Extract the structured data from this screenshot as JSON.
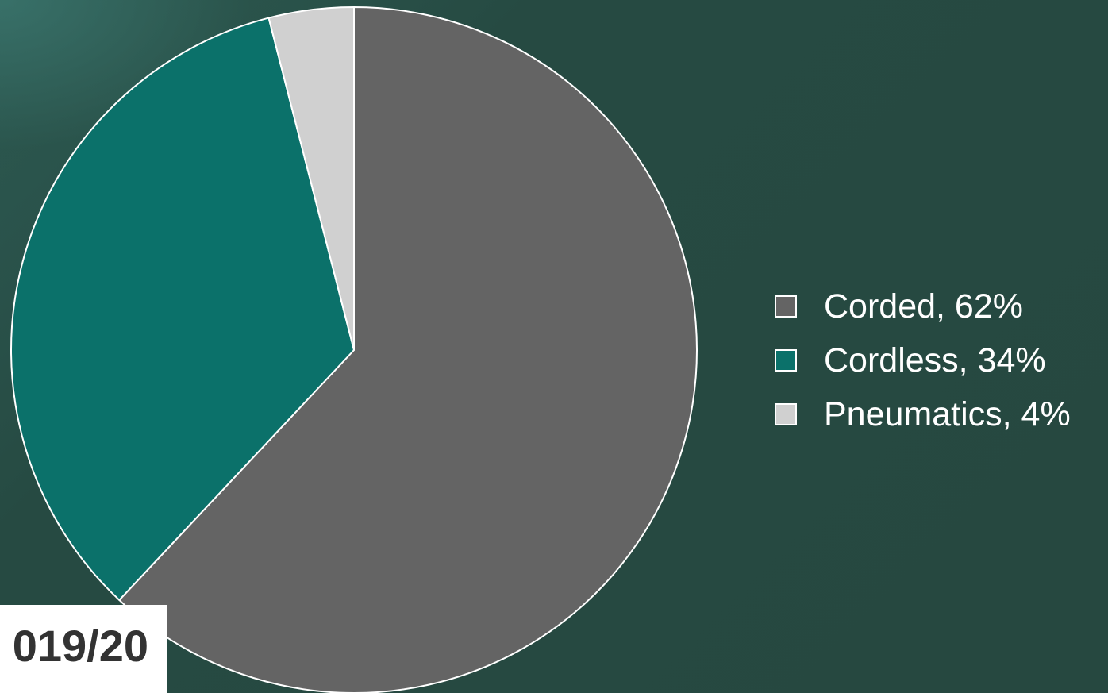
{
  "chart_data": {
    "type": "pie",
    "slices": [
      {
        "name": "Corded",
        "value": 62,
        "color": "#646464"
      },
      {
        "name": "Cordless",
        "value": 34,
        "color": "#0b716a"
      },
      {
        "name": "Pneumatics",
        "value": 4,
        "color": "#d0d0d0"
      }
    ],
    "legend": {
      "placement": "right",
      "labels": [
        "Corded, 62%",
        "Cordless, 34%",
        "Pneumatics, 4%"
      ]
    },
    "slice_border_color": "#ffffff",
    "start_angle": "12 o'clock",
    "direction": "clockwise"
  },
  "year_label": "019/20",
  "colors": {
    "background": "#264a42",
    "text": "#ffffff",
    "year_text": "#333333"
  }
}
